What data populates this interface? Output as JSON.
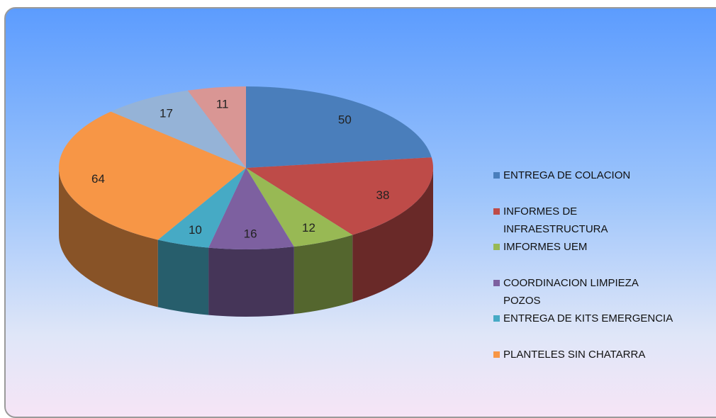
{
  "chart_data": {
    "type": "pie3d",
    "categories": [
      "ENTREGA DE COLACION",
      "INFORMES DE INFRAESTRUCTURA",
      "IMFORMES UEM",
      "COORDINACION  LIMPIEZA POZOS",
      "ENTREGA DE KITS EMERGENCIA",
      "PLANTELES SIN CHATARRA",
      null,
      null
    ],
    "values": [
      50,
      38,
      12,
      16,
      10,
      64,
      17,
      11
    ],
    "colors": [
      "#4a7ebb",
      "#be4b48",
      "#98b954",
      "#7d60a0",
      "#46aac5",
      "#f79646",
      "#95b3d7",
      "#d99694"
    ],
    "legend": "right"
  }
}
